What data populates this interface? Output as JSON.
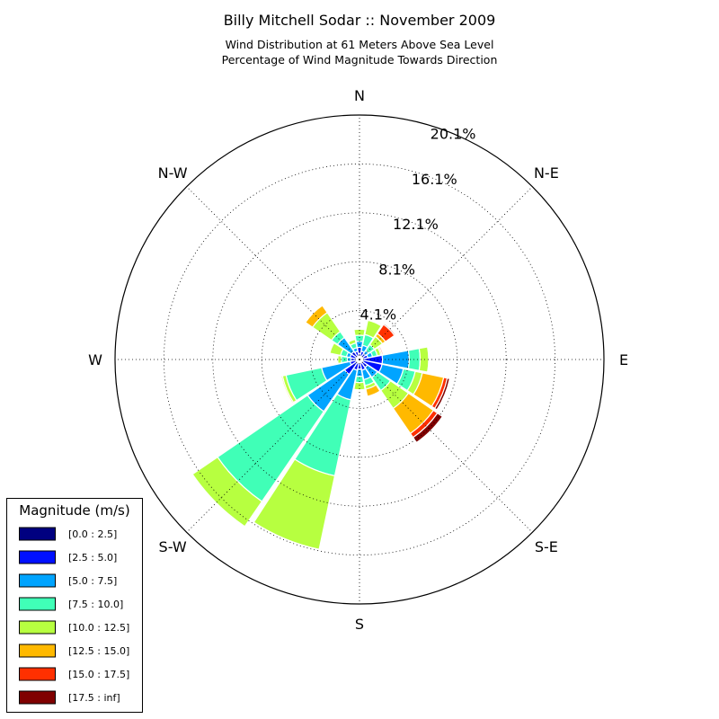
{
  "chart_data": {
    "type": "windrose",
    "title": "Billy Mitchell Sodar :: November 2009",
    "subtitle_lines": [
      "Wind Distribution at 61 Meters Above Sea Level",
      "Percentage of Wind Magnitude Towards Direction"
    ],
    "direction_labels": [
      "N",
      "N-E",
      "E",
      "S-E",
      "S",
      "S-W",
      "W",
      "N-W"
    ],
    "radial_ticks": [
      "4.1%",
      "8.1%",
      "12.1%",
      "16.1%",
      "20.1%"
    ],
    "radial_tick_values": [
      4.03,
      8.06,
      12.09,
      16.12,
      20.15
    ],
    "rmax": 20.15,
    "grid": true,
    "legend_title": "Magnitude (m/s)",
    "legend_position": "bottom-left",
    "bins": [
      {
        "label": "[0.0 : 2.5]",
        "color": "#000080"
      },
      {
        "label": "[2.5 : 5.0]",
        "color": "#0010ff"
      },
      {
        "label": "[5.0 : 7.5]",
        "color": "#00a4ff"
      },
      {
        "label": "[7.5 : 10.0]",
        "color": "#40ffb7"
      },
      {
        "label": "[10.0 : 12.5]",
        "color": "#b7ff40"
      },
      {
        "label": "[12.5 : 15.0]",
        "color": "#ffb900"
      },
      {
        "label": "[15.0 : 17.5]",
        "color": "#ff3000"
      },
      {
        "label": "[17.5 : inf]",
        "color": "#800000"
      }
    ],
    "sectors": [
      {
        "direction_deg": 0,
        "values": [
          0.5,
          0.5,
          0.5,
          0.5,
          0.5,
          0,
          0,
          0
        ]
      },
      {
        "direction_deg": 22.5,
        "values": [
          0.3,
          0.4,
          0.5,
          0.9,
          1.2,
          0,
          0,
          0
        ]
      },
      {
        "direction_deg": 45,
        "values": [
          0.3,
          0.3,
          0.3,
          0.6,
          0.8,
          0.3,
          0.9,
          0.1
        ]
      },
      {
        "direction_deg": 67.5,
        "values": [
          0.3,
          0.4,
          0.4,
          0.4,
          0.3,
          0.1,
          0.1,
          0
        ]
      },
      {
        "direction_deg": 90,
        "values": [
          0.3,
          1.6,
          2.2,
          0.9,
          0.7,
          0,
          0,
          0
        ]
      },
      {
        "direction_deg": 112.5,
        "values": [
          0.3,
          1.6,
          1.8,
          1.0,
          0.6,
          1.8,
          0.3,
          0.2
        ]
      },
      {
        "direction_deg": 135,
        "values": [
          0.3,
          0.5,
          1.0,
          1.3,
          1.8,
          2.5,
          0.4,
          0.5
        ]
      },
      {
        "direction_deg": 157.5,
        "values": [
          0.3,
          0.6,
          0.8,
          0.5,
          0.3,
          0.6,
          0,
          0
        ]
      },
      {
        "direction_deg": 180,
        "values": [
          0.3,
          0.5,
          0.6,
          0.5,
          0.6,
          0,
          0,
          0
        ]
      },
      {
        "direction_deg": 202.5,
        "values": [
          0.3,
          0.6,
          2.5,
          6.4,
          6.2,
          0,
          0,
          0
        ]
      },
      {
        "direction_deg": 225,
        "values": [
          0.3,
          1.2,
          3.7,
          9.0,
          2.5,
          0,
          0,
          0
        ]
      },
      {
        "direction_deg": 247.5,
        "values": [
          0.3,
          0.5,
          2.4,
          3.0,
          0.3,
          0.1,
          0,
          0
        ]
      },
      {
        "direction_deg": 270,
        "values": [
          0.3,
          0.4,
          0.3,
          0.5,
          0.3,
          0,
          0,
          0
        ]
      },
      {
        "direction_deg": 292.5,
        "values": [
          0.3,
          0.5,
          0.3,
          0.5,
          0.9,
          0,
          0,
          0
        ]
      },
      {
        "direction_deg": 315,
        "values": [
          0.3,
          0.5,
          1.4,
          0.6,
          1.9,
          0.7,
          0,
          0
        ]
      },
      {
        "direction_deg": 337.5,
        "values": [
          0.3,
          0.4,
          0.3,
          0.4,
          0.3,
          0,
          0,
          0
        ]
      }
    ]
  }
}
